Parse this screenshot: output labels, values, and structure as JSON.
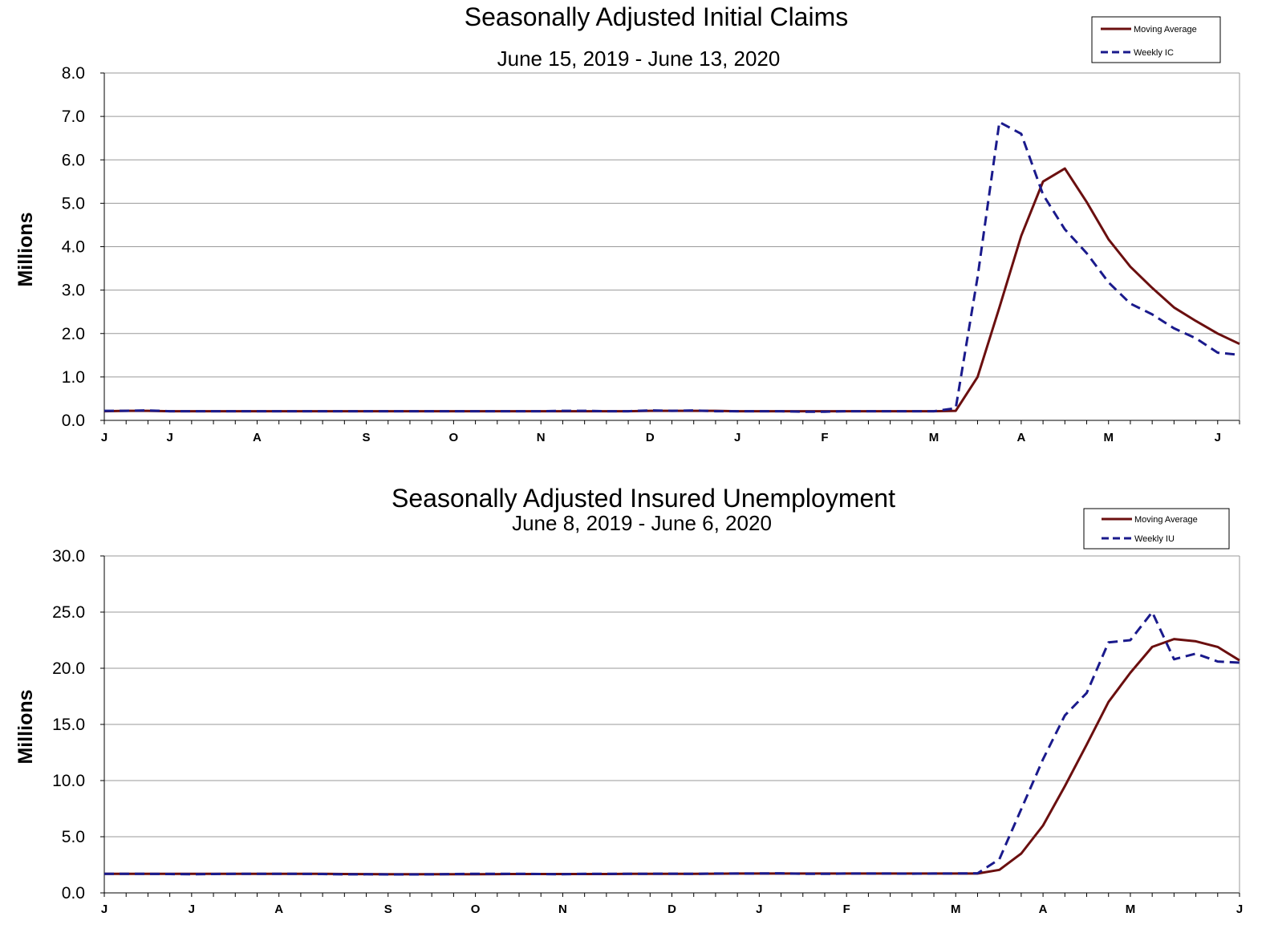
{
  "chart_data": [
    {
      "type": "line",
      "title": "Seasonally Adjusted Initial Claims",
      "subtitle": "June 15, 2019 - June 13, 2020",
      "ylabel": "Millions",
      "xlabel": "",
      "ylim": [
        0,
        8
      ],
      "yticks": [
        "0.0",
        "1.0",
        "2.0",
        "3.0",
        "4.0",
        "5.0",
        "6.0",
        "7.0",
        "8.0"
      ],
      "grid": true,
      "legend_position": "top-right",
      "x_month_labels": [
        "J",
        "J",
        "A",
        "S",
        "O",
        "N",
        "D",
        "J",
        "F",
        "M",
        "A",
        "M",
        "J"
      ],
      "x_month_label_weeks": [
        0,
        3,
        7,
        12,
        16,
        20,
        25,
        29,
        33,
        38,
        42,
        46,
        51
      ],
      "series": [
        {
          "name": "Moving Average",
          "color": "#6b0f0f",
          "dash": "solid",
          "values": [
            0.21,
            0.22,
            0.22,
            0.21,
            0.21,
            0.21,
            0.21,
            0.21,
            0.21,
            0.21,
            0.21,
            0.21,
            0.21,
            0.21,
            0.21,
            0.21,
            0.21,
            0.21,
            0.21,
            0.21,
            0.21,
            0.21,
            0.21,
            0.21,
            0.21,
            0.22,
            0.22,
            0.22,
            0.22,
            0.21,
            0.21,
            0.21,
            0.21,
            0.21,
            0.21,
            0.21,
            0.21,
            0.21,
            0.21,
            0.22,
            1.0,
            2.6,
            4.25,
            5.5,
            5.8,
            5.03,
            4.17,
            3.54,
            3.05,
            2.6,
            2.29,
            2.0,
            1.76
          ]
        },
        {
          "name": "Weekly IC",
          "color": "#1a1a8c",
          "dash": "dashed",
          "values": [
            0.22,
            0.22,
            0.23,
            0.21,
            0.21,
            0.21,
            0.21,
            0.21,
            0.21,
            0.21,
            0.21,
            0.21,
            0.21,
            0.21,
            0.21,
            0.21,
            0.21,
            0.21,
            0.21,
            0.21,
            0.21,
            0.22,
            0.22,
            0.21,
            0.21,
            0.23,
            0.22,
            0.23,
            0.21,
            0.21,
            0.21,
            0.21,
            0.2,
            0.2,
            0.21,
            0.21,
            0.21,
            0.21,
            0.21,
            0.28,
            3.3,
            6.87,
            6.6,
            5.2,
            4.4,
            3.85,
            3.18,
            2.69,
            2.44,
            2.12,
            1.89,
            1.56,
            1.51
          ]
        }
      ]
    },
    {
      "type": "line",
      "title": "Seasonally Adjusted Insured Unemployment",
      "subtitle": "June 8, 2019 - June 6, 2020",
      "ylabel": "Millions",
      "xlabel": "",
      "ylim": [
        0,
        30
      ],
      "yticks": [
        "0.0",
        "5.0",
        "10.0",
        "15.0",
        "20.0",
        "25.0",
        "30.0"
      ],
      "grid": true,
      "legend_position": "top-right",
      "x_month_labels": [
        "J",
        "J",
        "A",
        "S",
        "O",
        "N",
        "D",
        "J",
        "F",
        "M",
        "A",
        "M",
        "J"
      ],
      "x_month_label_weeks": [
        0,
        4,
        8,
        13,
        17,
        21,
        26,
        30,
        34,
        39,
        43,
        47,
        52
      ],
      "series": [
        {
          "name": "Moving Average",
          "color": "#6b0f0f",
          "dash": "solid",
          "values": [
            1.69,
            1.69,
            1.69,
            1.69,
            1.69,
            1.69,
            1.69,
            1.69,
            1.69,
            1.69,
            1.69,
            1.68,
            1.67,
            1.66,
            1.66,
            1.66,
            1.66,
            1.66,
            1.67,
            1.68,
            1.68,
            1.68,
            1.68,
            1.68,
            1.69,
            1.69,
            1.7,
            1.7,
            1.71,
            1.72,
            1.72,
            1.72,
            1.72,
            1.72,
            1.72,
            1.72,
            1.72,
            1.72,
            1.72,
            1.72,
            1.72,
            2.05,
            3.5,
            6.0,
            9.5,
            13.2,
            17.0,
            19.6,
            21.9,
            22.6,
            22.4,
            21.9,
            20.7
          ]
        },
        {
          "name": "Weekly IU",
          "color": "#1a1a8c",
          "dash": "dashed",
          "values": [
            1.69,
            1.7,
            1.69,
            1.68,
            1.66,
            1.68,
            1.7,
            1.69,
            1.7,
            1.69,
            1.68,
            1.65,
            1.66,
            1.64,
            1.64,
            1.65,
            1.68,
            1.7,
            1.7,
            1.7,
            1.68,
            1.66,
            1.7,
            1.7,
            1.7,
            1.7,
            1.71,
            1.69,
            1.72,
            1.72,
            1.73,
            1.74,
            1.7,
            1.69,
            1.72,
            1.72,
            1.72,
            1.71,
            1.72,
            1.73,
            1.74,
            3.0,
            7.45,
            11.9,
            15.8,
            17.8,
            22.3,
            22.5,
            25.0,
            20.8,
            21.3,
            20.6,
            20.5
          ]
        }
      ]
    }
  ]
}
